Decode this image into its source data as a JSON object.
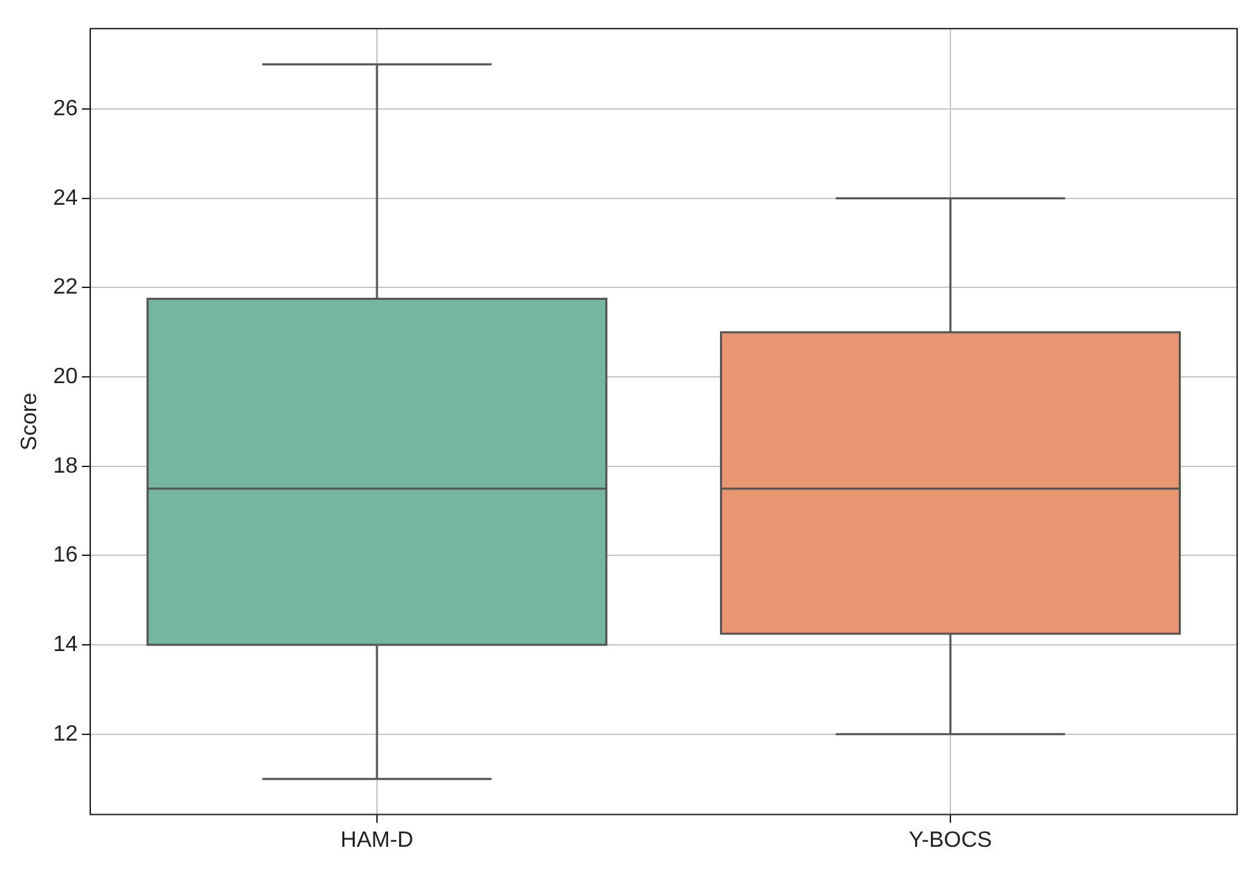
{
  "chart_data": {
    "type": "box",
    "ylabel": "Score",
    "categories": [
      "HAM-D",
      "Y-BOCS"
    ],
    "boxes": [
      {
        "low": 11,
        "q1": 14,
        "median": 17.5,
        "q3": 21.75,
        "high": 27
      },
      {
        "low": 12,
        "q1": 14.25,
        "median": 17.5,
        "q3": 21,
        "high": 24
      }
    ],
    "colors": [
      "#75b6a1",
      "#e99673"
    ],
    "ylim": [
      10.2,
      27.8
    ],
    "yticks": [
      12,
      14,
      16,
      18,
      20,
      22,
      24,
      26
    ],
    "grid": true,
    "legend": false
  }
}
